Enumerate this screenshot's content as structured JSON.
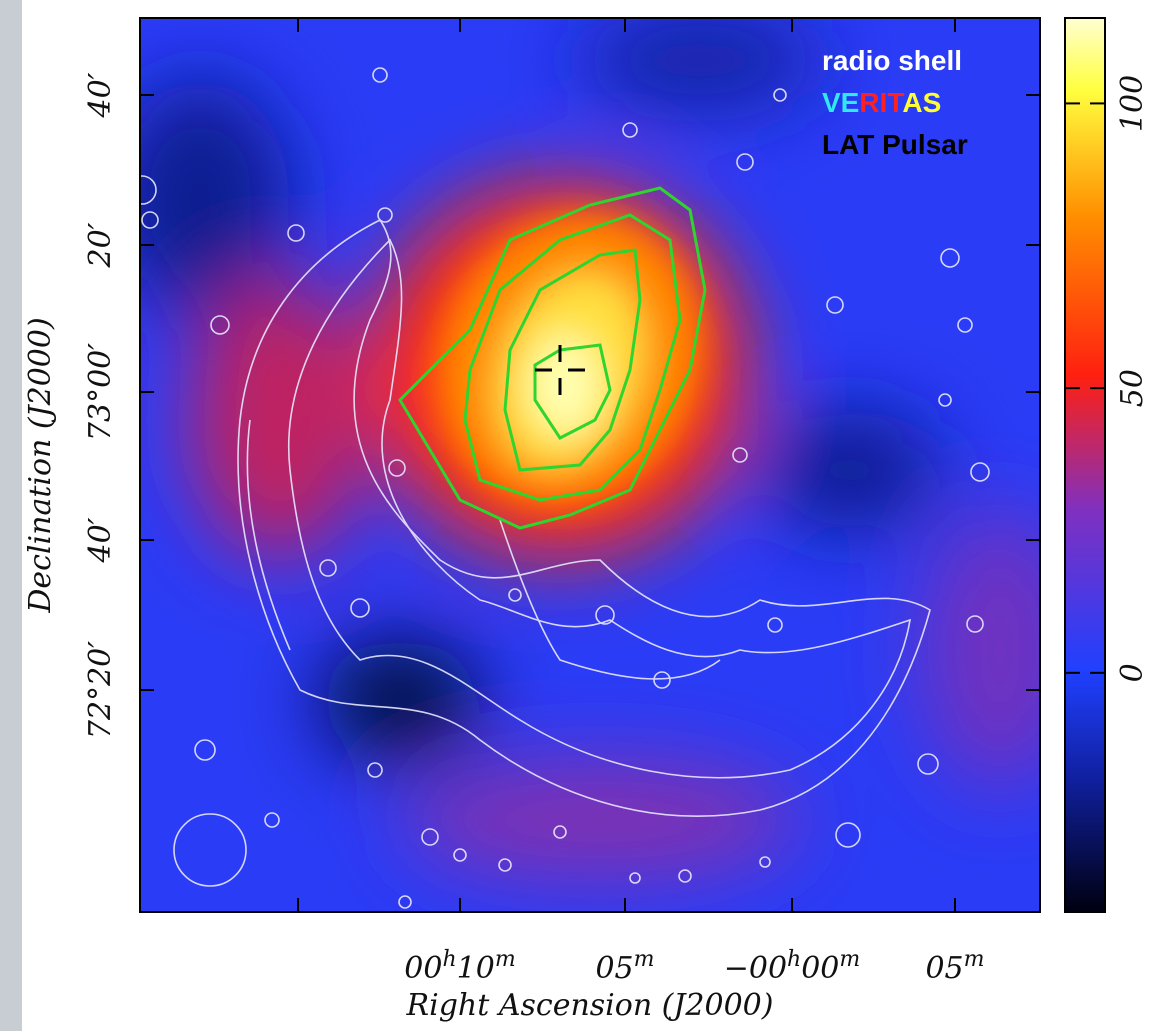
{
  "axes": {
    "y_label": "Declination (J2000)",
    "x_label": "Right Ascension (J2000)",
    "y_ticks": [
      "40′",
      "20′",
      "73°00′",
      "40′",
      "72°20′"
    ],
    "x_ticks": [
      [
        "00",
        "h",
        "10",
        "m"
      ],
      [
        "05",
        "m"
      ],
      [
        "−00",
        "h",
        "00",
        "m"
      ],
      [
        "05",
        "m"
      ]
    ]
  },
  "legend": {
    "radio": "radio shell",
    "veritas": [
      "VE",
      "RIT",
      "AS"
    ],
    "pulsar": "LAT Pulsar"
  },
  "colorbar": {
    "lim": [
      -42,
      115
    ],
    "ticks": [
      0,
      50,
      100
    ]
  }
}
